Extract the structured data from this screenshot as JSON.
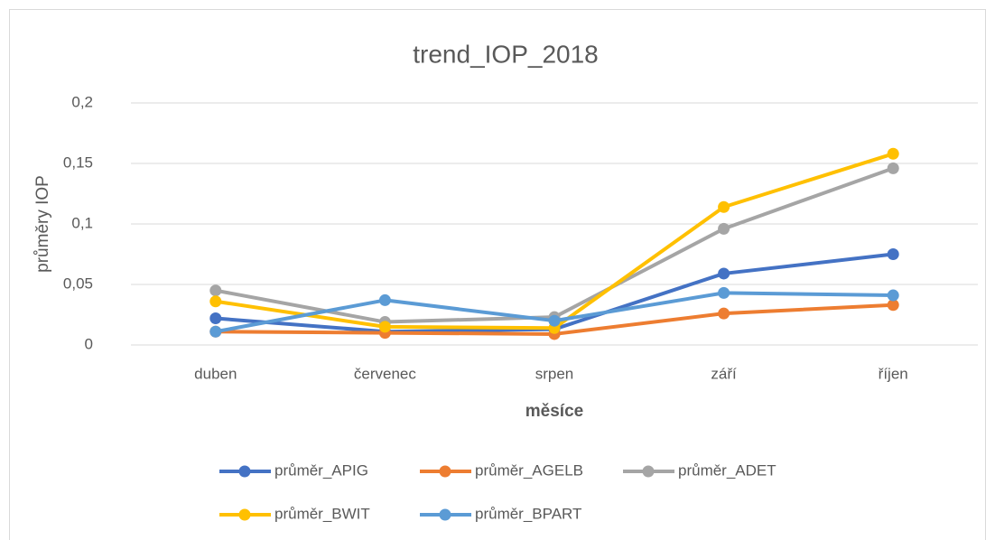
{
  "chart_data": {
    "type": "line",
    "title": "trend_IOP_2018",
    "x_label": "měsíce",
    "y_label": "průměry IOP",
    "categories": [
      "duben",
      "červenec",
      "srpen",
      "září",
      "říjen"
    ],
    "ylim": [
      0,
      0.2
    ],
    "yticks": [
      0,
      {
        "value": 0.05,
        "label": "0,05"
      },
      {
        "value": 0.1,
        "label": "0,1"
      },
      {
        "value": 0.15,
        "label": "0,15"
      },
      {
        "value": 0.2,
        "label": "0,2"
      }
    ],
    "grid": true,
    "legend": "bottom",
    "series": [
      {
        "name": "průměr_APIG",
        "color": "#4472c4",
        "values": [
          0.022,
          0.011,
          0.013,
          0.059,
          0.075
        ]
      },
      {
        "name": "průměr_AGELB",
        "color": "#ed7d31",
        "values": [
          0.011,
          0.01,
          0.009,
          0.026,
          0.033
        ]
      },
      {
        "name": "průměr_ADET",
        "color": "#a5a5a5",
        "values": [
          0.045,
          0.019,
          0.023,
          0.096,
          0.146
        ]
      },
      {
        "name": "průměr_BWIT",
        "color": "#ffc000",
        "values": [
          0.036,
          0.015,
          0.014,
          0.114,
          0.158
        ]
      },
      {
        "name": "průměr_BPART",
        "color": "#5b9bd5",
        "values": [
          0.011,
          0.037,
          0.02,
          0.043,
          0.041
        ]
      }
    ]
  }
}
